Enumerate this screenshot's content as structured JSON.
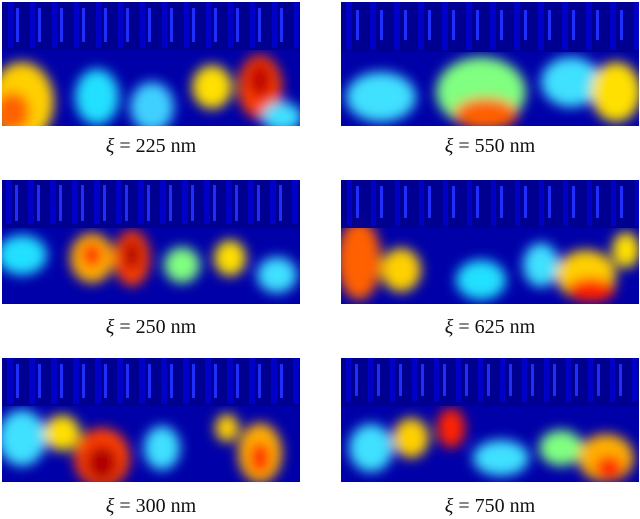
{
  "figures": [
    {
      "symbol": "ξ",
      "label": " = 225 nm"
    },
    {
      "symbol": "ξ",
      "label": " = 550 nm"
    },
    {
      "symbol": "ξ",
      "label": " = 250 nm"
    },
    {
      "symbol": "ξ",
      "label": " = 625 nm"
    },
    {
      "symbol": "ξ",
      "label": " = 300 nm"
    },
    {
      "symbol": "ξ",
      "label": " = 750 nm"
    }
  ],
  "colors": {
    "colormap": [
      "#00008f",
      "#0000ff",
      "#0080ff",
      "#00ffff",
      "#80ff80",
      "#ffff00",
      "#ff8000",
      "#ff0000",
      "#800000"
    ]
  }
}
